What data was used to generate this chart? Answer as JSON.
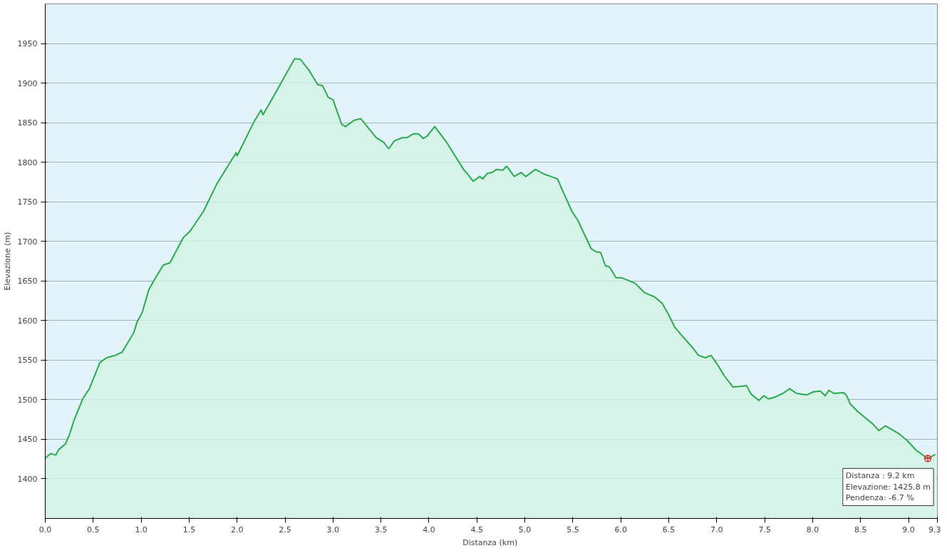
{
  "chart_data": {
    "type": "area",
    "xlabel": "Distanza  (km)",
    "ylabel": "Elevazione (m)",
    "xlim": [
      0,
      9.3
    ],
    "ylim": [
      1350,
      2000
    ],
    "xticks": [
      {
        "value": 0,
        "label": "0.0"
      },
      0.5,
      {
        "value": 1,
        "label": "1.0"
      },
      1.5,
      {
        "value": 2,
        "label": "2.0"
      },
      2.5,
      {
        "value": 3,
        "label": "3.0"
      },
      3.5,
      {
        "value": 4,
        "label": "4.0"
      },
      4.5,
      {
        "value": 5,
        "label": "5.0"
      },
      5.5,
      {
        "value": 6,
        "label": "6.0"
      },
      6.5,
      {
        "value": 7,
        "label": "7.0"
      },
      7.5,
      {
        "value": 8,
        "label": "8.0"
      },
      8.5,
      {
        "value": 9,
        "label": "9.0"
      },
      9.3
    ],
    "yticks": [
      1400,
      1450,
      1500,
      1550,
      1600,
      1650,
      1700,
      1750,
      1800,
      1850,
      1900,
      1950
    ],
    "grid": "y",
    "marker": "none",
    "line_style": "solid",
    "x": [
      0,
      0.056,
      0.11,
      0.14,
      0.21,
      0.25,
      0.3,
      0.39,
      0.46,
      0.57,
      0.64,
      0.73,
      0.8,
      0.92,
      0.96,
      1.01,
      1.08,
      1.15,
      1.23,
      1.3,
      1.44,
      1.51,
      1.65,
      1.79,
      1.99,
      2.0,
      2.18,
      2.25,
      2.27,
      2.36,
      2.6,
      2.66,
      2.75,
      2.84,
      2.89,
      2.95,
      3.0,
      3.09,
      3.13,
      3.22,
      3.29,
      3.45,
      3.53,
      3.58,
      3.64,
      3.72,
      3.77,
      3.84,
      3.89,
      3.94,
      3.98,
      4.06,
      4.18,
      4.36,
      4.41,
      4.46,
      4.53,
      4.56,
      4.61,
      4.66,
      4.7,
      4.77,
      4.81,
      4.89,
      4.96,
      5.01,
      5.11,
      5.2,
      5.27,
      5.34,
      5.39,
      5.49,
      5.55,
      5.64,
      5.69,
      5.74,
      5.79,
      5.84,
      5.88,
      5.95,
      6.01,
      6.07,
      6.15,
      6.25,
      6.35,
      6.43,
      6.5,
      6.56,
      6.63,
      6.74,
      6.81,
      6.88,
      6.94,
      7.01,
      7.08,
      7.17,
      7.26,
      7.31,
      7.36,
      7.44,
      7.49,
      7.54,
      7.6,
      7.69,
      7.76,
      7.83,
      7.94,
      8.01,
      8.08,
      8.13,
      8.17,
      8.22,
      8.32,
      8.35,
      8.39,
      8.47,
      8.56,
      8.63,
      8.69,
      8.76,
      8.9,
      8.98,
      9.08,
      9.2,
      9.28
    ],
    "series": [
      {
        "color": "#2ca84f",
        "values": [
          1426,
          1432,
          1430,
          1437,
          1444,
          1455,
          1474,
          1501,
          1514,
          1547,
          1553,
          1556,
          1560,
          1584,
          1599,
          1610,
          1639,
          1654,
          1670,
          1673,
          1705,
          1713,
          1738,
          1773,
          1812,
          1808,
          1852,
          1866,
          1860,
          1879,
          1931,
          1930,
          1916,
          1898,
          1897,
          1882,
          1879,
          1848,
          1845,
          1853,
          1855,
          1831,
          1825,
          1817,
          1827,
          1831,
          1831,
          1836,
          1836,
          1830,
          1833,
          1845,
          1826,
          1791,
          1784,
          1776,
          1782,
          1779,
          1786,
          1787,
          1791,
          1790,
          1795,
          1782,
          1787,
          1782,
          1791,
          1785,
          1782,
          1779,
          1765,
          1738,
          1727,
          1704,
          1691,
          1687,
          1686,
          1669,
          1668,
          1654,
          1654,
          1651,
          1647,
          1635,
          1630,
          1622,
          1607,
          1592,
          1582,
          1567,
          1556,
          1553,
          1556,
          1544,
          1530,
          1516,
          1517,
          1518,
          1507,
          1499,
          1505,
          1501,
          1503,
          1508,
          1514,
          1508,
          1506,
          1510,
          1511,
          1505,
          1512,
          1508,
          1509,
          1506,
          1495,
          1485,
          1476,
          1469,
          1461,
          1467,
          1457,
          1449,
          1436,
          1425.8,
          1431
        ]
      }
    ],
    "annotations": [
      {
        "text": "Distanza : 9.2 km\nElevazione: 1425.8 m\nPendenza: -6.7 %",
        "x": 9.2,
        "y": 1425.8
      }
    ]
  }
}
